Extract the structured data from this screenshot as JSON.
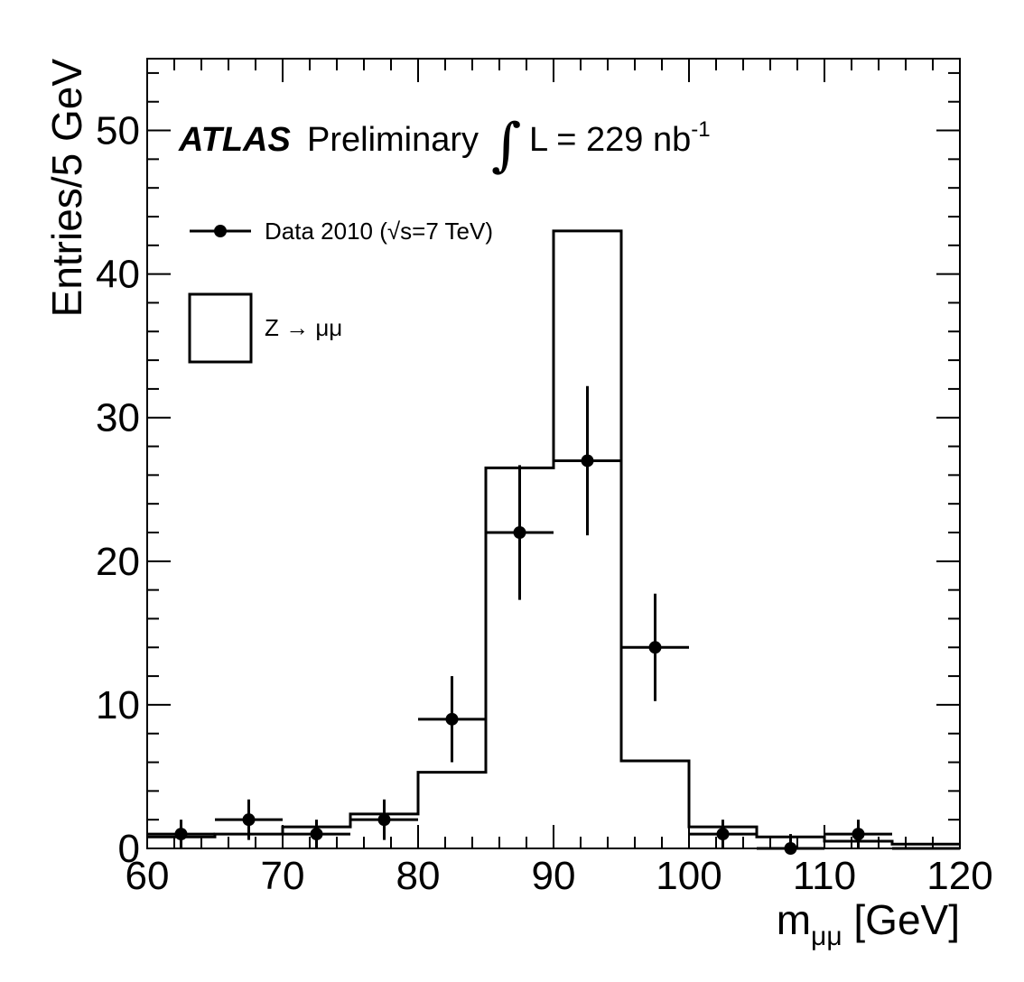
{
  "chart_data": {
    "type": "histogram",
    "xlabel_main": "m",
    "xlabel_sub": "μμ",
    "xlabel_unit": " [GeV]",
    "ylabel": "Entries/5 GeV",
    "xlim": [
      60,
      120
    ],
    "ylim": [
      0,
      55
    ],
    "x_ticks": [
      60,
      70,
      80,
      90,
      100,
      110,
      120
    ],
    "y_ticks": [
      0,
      10,
      20,
      30,
      40,
      50
    ],
    "bin_edges": [
      60,
      65,
      70,
      75,
      80,
      85,
      90,
      95,
      100,
      105,
      110,
      115,
      120
    ],
    "series": [
      {
        "name": "Z → μμ",
        "kind": "step",
        "values": [
          0.8,
          1.0,
          1.5,
          2.4,
          5.3,
          26.5,
          43.0,
          6.1,
          1.5,
          0.8,
          0.5,
          0.3
        ]
      },
      {
        "name": "Data 2010 (√s=7 TeV)",
        "kind": "points",
        "values": [
          1,
          2,
          1,
          2,
          9,
          22,
          27,
          14,
          1,
          0,
          1,
          0
        ],
        "errors": [
          1.0,
          1.41,
          1.0,
          1.41,
          3.0,
          4.69,
          5.2,
          3.74,
          1.0,
          1.0,
          1.0,
          0
        ]
      }
    ],
    "annotation": {
      "atlas": "ATLAS",
      "preliminary": "Preliminary",
      "integral": "∫",
      "lumi": "L = 229 nb",
      "lumi_exp": "-1"
    },
    "legend": {
      "data_prefix": "Data 2010 (",
      "data_sqrt": "√",
      "data_suffix": "s=7 TeV)",
      "mc": "Z → μμ",
      "placement": "top-left"
    }
  }
}
